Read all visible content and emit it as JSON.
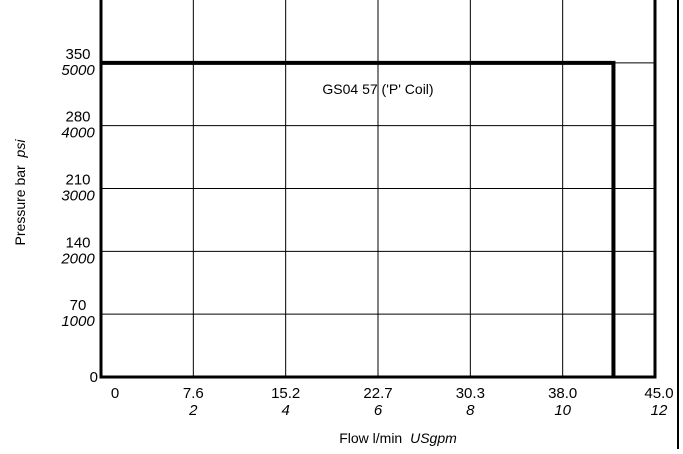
{
  "chart_data": {
    "type": "line",
    "title": "",
    "x_axis": {
      "label": "Flow l/min",
      "label_secondary": "USgpm",
      "range_gpm": [
        0,
        12
      ],
      "ticks": [
        {
          "gpm": 0,
          "primary": "0",
          "secondary": ""
        },
        {
          "gpm": 2,
          "primary": "7.6",
          "secondary": "2"
        },
        {
          "gpm": 4,
          "primary": "15.2",
          "secondary": "4"
        },
        {
          "gpm": 6,
          "primary": "22.7",
          "secondary": "6"
        },
        {
          "gpm": 8,
          "primary": "30.3",
          "secondary": "8"
        },
        {
          "gpm": 10,
          "primary": "38.0",
          "secondary": "10"
        },
        {
          "gpm": 12,
          "primary": "45.0",
          "secondary": "12"
        }
      ]
    },
    "y_axis": {
      "label": "Pressure bar",
      "label_secondary": "psi",
      "range_psi": [
        0,
        6000
      ],
      "ticks": [
        {
          "psi": 0,
          "primary": "0",
          "secondary": ""
        },
        {
          "psi": 1000,
          "primary": "70",
          "secondary": "1000"
        },
        {
          "psi": 2000,
          "primary": "140",
          "secondary": "2000"
        },
        {
          "psi": 3000,
          "primary": "210",
          "secondary": "3000"
        },
        {
          "psi": 4000,
          "primary": "280",
          "secondary": "4000"
        },
        {
          "psi": 5000,
          "primary": "350",
          "secondary": "5000"
        }
      ]
    },
    "grid": true,
    "series": [
      {
        "name": "GS04 57 ('P' Coil)",
        "points": [
          {
            "x_gpm": 0,
            "y_psi": 5000
          },
          {
            "x_gpm": 11.1,
            "y_psi": 5000
          },
          {
            "x_gpm": 11.1,
            "y_psi": 0
          }
        ]
      }
    ]
  }
}
